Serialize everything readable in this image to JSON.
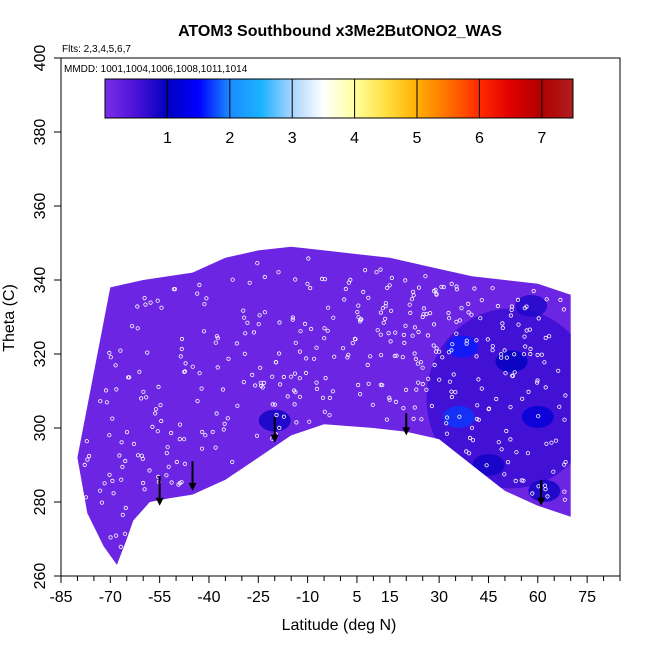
{
  "chart_data": {
    "type": "heatmap",
    "title": "ATOM3 Southbound x3Me2ButONO2_WAS",
    "flights_note": "Flts: 2,3,4,5,6,7",
    "dates_note": "MMDD: 1001,1004,1006,1008,1011,1014",
    "xlabel": "Latitude (deg N)",
    "ylabel": "Theta (C)",
    "xlim": [
      -85,
      85
    ],
    "ylim": [
      260,
      400
    ],
    "x_ticks": [
      "-85",
      "-70",
      "-55",
      "-40",
      "-25",
      "-10",
      "5",
      "15",
      "30",
      "45",
      "60",
      "75"
    ],
    "y_ticks": [
      "260",
      "280",
      "300",
      "320",
      "340",
      "360",
      "380",
      "400"
    ],
    "colorbar": {
      "range": [
        0,
        7.5
      ],
      "ticks": [
        "1",
        "2",
        "3",
        "4",
        "5",
        "6",
        "7"
      ],
      "colors": [
        "#7a2fe8",
        "#4b10d8",
        "#0000c0",
        "#0000ff",
        "#1a8cff",
        "#1ab2ff",
        "#aad4ff",
        "#ffffff",
        "#ffffa0",
        "#ffe040",
        "#ffb000",
        "#ff7000",
        "#ff2a00",
        "#e00000",
        "#b00000",
        "#b01e1e"
      ]
    },
    "curtain_envelope": {
      "upper": [
        [
          -70,
          338
        ],
        [
          -60,
          340
        ],
        [
          -45,
          342
        ],
        [
          -35,
          346
        ],
        [
          -25,
          348
        ],
        [
          -15,
          349
        ],
        [
          -5,
          348
        ],
        [
          5,
          347
        ],
        [
          15,
          346
        ],
        [
          25,
          344
        ],
        [
          40,
          341
        ],
        [
          50,
          340
        ],
        [
          60,
          339
        ],
        [
          70,
          336
        ]
      ],
      "lower": [
        [
          70,
          276
        ],
        [
          60,
          279
        ],
        [
          50,
          283
        ],
        [
          40,
          290
        ],
        [
          30,
          297
        ],
        [
          20,
          299
        ],
        [
          10,
          300
        ],
        [
          -5,
          301
        ],
        [
          -15,
          298
        ],
        [
          -25,
          292
        ],
        [
          -35,
          286
        ],
        [
          -45,
          282
        ],
        [
          -52,
          281
        ],
        [
          -58,
          280
        ],
        [
          -63,
          275
        ],
        [
          -65,
          270
        ],
        [
          -68,
          263
        ],
        [
          -72,
          268
        ],
        [
          -77,
          277
        ],
        [
          -80,
          292
        ]
      ]
    },
    "enhancements": [
      {
        "lat": 37,
        "theta": 322,
        "value": 1.6
      },
      {
        "lat": 36,
        "theta": 303,
        "value": 1.7
      },
      {
        "lat": 52,
        "theta": 318,
        "value": 1.0
      },
      {
        "lat": 60,
        "theta": 303,
        "value": 1.2
      },
      {
        "lat": 45,
        "theta": 290,
        "value": 0.9
      },
      {
        "lat": 62,
        "theta": 283,
        "value": 0.9
      },
      {
        "lat": 58,
        "theta": 333,
        "value": 0.8
      },
      {
        "lat": -20,
        "theta": 302,
        "value": 0.9
      }
    ],
    "arrows": [
      {
        "lat": -55,
        "theta_top": 287,
        "theta_bottom": 279
      },
      {
        "lat": -45,
        "theta_top": 291,
        "theta_bottom": 283
      },
      {
        "lat": -20,
        "theta_top": 303,
        "theta_bottom": 296
      },
      {
        "lat": 20,
        "theta_top": 304,
        "theta_bottom": 298
      },
      {
        "lat": 61,
        "theta_top": 286,
        "theta_bottom": 279
      }
    ]
  }
}
